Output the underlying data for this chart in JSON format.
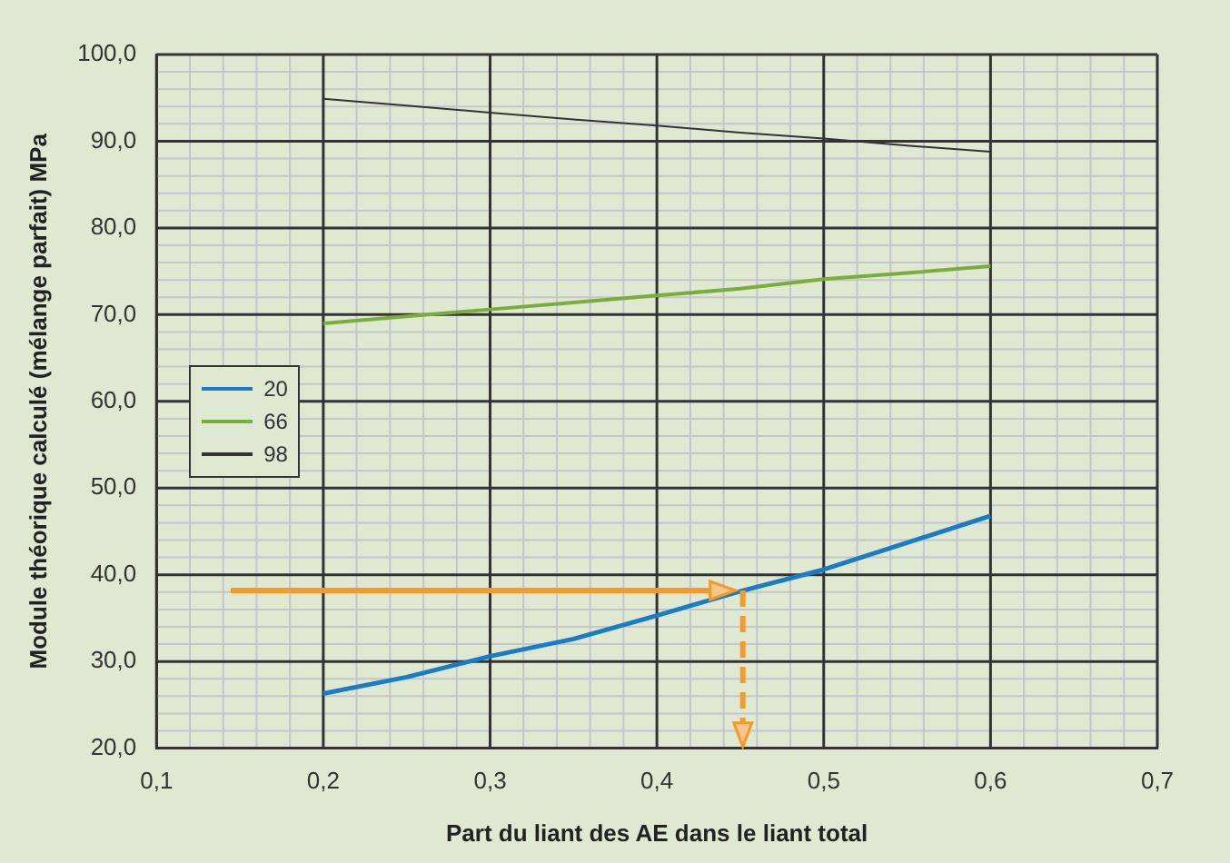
{
  "chart_data": {
    "type": "line",
    "xlabel": "Part du liant des AE dans le liant total",
    "ylabel": "Module théorique calculé (mélange parfait) MPa",
    "x": [
      0.2,
      0.25,
      0.3,
      0.35,
      0.4,
      0.45,
      0.5,
      0.55,
      0.6
    ],
    "series": [
      {
        "name": "20",
        "color": "#1a7cc8",
        "values": [
          26.3,
          28.2,
          30.6,
          32.6,
          35.3,
          38.1,
          40.6,
          43.7,
          46.8
        ]
      },
      {
        "name": "66",
        "color": "#7aae3c",
        "values": [
          69.0,
          69.8,
          70.6,
          71.4,
          72.2,
          73.0,
          74.1,
          74.8,
          75.6
        ]
      },
      {
        "name": "98",
        "color": "#333333",
        "values": [
          94.9,
          94.1,
          93.3,
          92.5,
          91.8,
          91.0,
          90.3,
          89.5,
          88.8
        ]
      }
    ],
    "xlim": [
      0.1,
      0.7
    ],
    "xticks": [
      {
        "value": 0.1,
        "label": "0,1"
      },
      {
        "value": 0.2,
        "label": "0,2"
      },
      {
        "value": 0.3,
        "label": "0,3"
      },
      {
        "value": 0.4,
        "label": "0,4"
      },
      {
        "value": 0.5,
        "label": "0,5"
      },
      {
        "value": 0.6,
        "label": "0,6"
      },
      {
        "value": 0.7,
        "label": "0,7"
      }
    ],
    "ylim": [
      20,
      100
    ],
    "yticks": [
      {
        "value": 20,
        "label": "20,0"
      },
      {
        "value": 30,
        "label": "30,0"
      },
      {
        "value": 40,
        "label": "40,0"
      },
      {
        "value": 50,
        "label": "50,0"
      },
      {
        "value": 60,
        "label": "60,0"
      },
      {
        "value": 70,
        "label": "70,0"
      },
      {
        "value": 80,
        "label": "80,0"
      },
      {
        "value": 90,
        "label": "90,0"
      },
      {
        "value": 100,
        "label": "100,0"
      }
    ],
    "grid": true,
    "legend": "left",
    "marker": "none",
    "line_style": "solid"
  }
}
